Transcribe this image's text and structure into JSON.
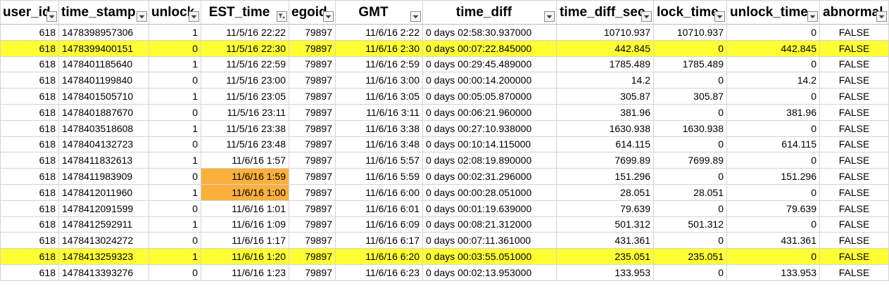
{
  "colors": {
    "row_highlight": "#ffff33",
    "cell_highlight": "#fbb03b",
    "gridline": "#d4d4d4"
  },
  "columns": [
    {
      "label": "user_id",
      "filter_icon": "filter-dropdown-icon",
      "filtered": false
    },
    {
      "label": "time_stamp",
      "filter_icon": "filter-dropdown-icon",
      "filtered": false
    },
    {
      "label": "unlock",
      "filter_icon": "filter-dropdown-icon",
      "filtered": false
    },
    {
      "label": "EST_time",
      "filter_icon": "filter-active-icon",
      "filtered": true
    },
    {
      "label": "egoid",
      "filter_icon": "filter-dropdown-icon",
      "filtered": false
    },
    {
      "label": "GMT",
      "filter_icon": "filter-dropdown-icon",
      "filtered": false
    },
    {
      "label": "time_diff",
      "filter_icon": "filter-dropdown-icon",
      "filtered": false
    },
    {
      "label": "time_diff_sec",
      "filter_icon": "filter-dropdown-icon",
      "filtered": false
    },
    {
      "label": "lock_time",
      "filter_icon": "filter-dropdown-icon",
      "filtered": false
    },
    {
      "label": "unlock_time",
      "filter_icon": "filter-dropdown-icon",
      "filtered": false
    },
    {
      "label": "abnormal",
      "filter_icon": "filter-dropdown-icon",
      "filtered": false
    }
  ],
  "rows": [
    {
      "highlight": false,
      "orange_cols": [],
      "cells": [
        "618",
        "1478398957306",
        "1",
        "11/5/16 22:22",
        "79897",
        "11/6/16 2:22",
        "0 days 02:58:30.937000",
        "10710.937",
        "10710.937",
        "0",
        "FALSE"
      ]
    },
    {
      "highlight": true,
      "orange_cols": [],
      "cells": [
        "618",
        "1478399400151",
        "0",
        "11/5/16 22:30",
        "79897",
        "11/6/16 2:30",
        "0 days 00:07:22.845000",
        "442.845",
        "0",
        "442.845",
        "FALSE"
      ]
    },
    {
      "highlight": false,
      "orange_cols": [],
      "cells": [
        "618",
        "1478401185640",
        "1",
        "11/5/16 22:59",
        "79897",
        "11/6/16 2:59",
        "0 days 00:29:45.489000",
        "1785.489",
        "1785.489",
        "0",
        "FALSE"
      ]
    },
    {
      "highlight": false,
      "orange_cols": [],
      "cells": [
        "618",
        "1478401199840",
        "0",
        "11/5/16 23:00",
        "79897",
        "11/6/16 3:00",
        "0 days 00:00:14.200000",
        "14.2",
        "0",
        "14.2",
        "FALSE"
      ]
    },
    {
      "highlight": false,
      "orange_cols": [],
      "cells": [
        "618",
        "1478401505710",
        "1",
        "11/5/16 23:05",
        "79897",
        "11/6/16 3:05",
        "0 days 00:05:05.870000",
        "305.87",
        "305.87",
        "0",
        "FALSE"
      ]
    },
    {
      "highlight": false,
      "orange_cols": [],
      "cells": [
        "618",
        "1478401887670",
        "0",
        "11/5/16 23:11",
        "79897",
        "11/6/16 3:11",
        "0 days 00:06:21.960000",
        "381.96",
        "0",
        "381.96",
        "FALSE"
      ]
    },
    {
      "highlight": false,
      "orange_cols": [],
      "cells": [
        "618",
        "1478403518608",
        "1",
        "11/5/16 23:38",
        "79897",
        "11/6/16 3:38",
        "0 days 00:27:10.938000",
        "1630.938",
        "1630.938",
        "0",
        "FALSE"
      ]
    },
    {
      "highlight": false,
      "orange_cols": [],
      "cells": [
        "618",
        "1478404132723",
        "0",
        "11/5/16 23:48",
        "79897",
        "11/6/16 3:48",
        "0 days 00:10:14.115000",
        "614.115",
        "0",
        "614.115",
        "FALSE"
      ]
    },
    {
      "highlight": false,
      "orange_cols": [],
      "cells": [
        "618",
        "1478411832613",
        "1",
        "11/6/16 1:57",
        "79897",
        "11/6/16 5:57",
        "0 days 02:08:19.890000",
        "7699.89",
        "7699.89",
        "0",
        "FALSE"
      ]
    },
    {
      "highlight": false,
      "orange_cols": [
        3
      ],
      "cells": [
        "618",
        "1478411983909",
        "0",
        "11/6/16 1:59",
        "79897",
        "11/6/16 5:59",
        "0 days 00:02:31.296000",
        "151.296",
        "0",
        "151.296",
        "FALSE"
      ]
    },
    {
      "highlight": false,
      "orange_cols": [
        3
      ],
      "cells": [
        "618",
        "1478412011960",
        "1",
        "11/6/16 1:00",
        "79897",
        "11/6/16 6:00",
        "0 days 00:00:28.051000",
        "28.051",
        "28.051",
        "0",
        "FALSE"
      ]
    },
    {
      "highlight": false,
      "orange_cols": [],
      "cells": [
        "618",
        "1478412091599",
        "0",
        "11/6/16 1:01",
        "79897",
        "11/6/16 6:01",
        "0 days 00:01:19.639000",
        "79.639",
        "0",
        "79.639",
        "FALSE"
      ]
    },
    {
      "highlight": false,
      "orange_cols": [],
      "cells": [
        "618",
        "1478412592911",
        "1",
        "11/6/16 1:09",
        "79897",
        "11/6/16 6:09",
        "0 days 00:08:21.312000",
        "501.312",
        "501.312",
        "0",
        "FALSE"
      ]
    },
    {
      "highlight": false,
      "orange_cols": [],
      "cells": [
        "618",
        "1478413024272",
        "0",
        "11/6/16 1:17",
        "79897",
        "11/6/16 6:17",
        "0 days 00:07:11.361000",
        "431.361",
        "0",
        "431.361",
        "FALSE"
      ]
    },
    {
      "highlight": true,
      "orange_cols": [],
      "cells": [
        "618",
        "1478413259323",
        "1",
        "11/6/16 1:20",
        "79897",
        "11/6/16 6:20",
        "0 days 00:03:55.051000",
        "235.051",
        "235.051",
        "0",
        "FALSE"
      ]
    },
    {
      "highlight": false,
      "orange_cols": [],
      "cells": [
        "618",
        "1478413393276",
        "0",
        "11/6/16 1:23",
        "79897",
        "11/6/16 6:23",
        "0 days 00:02:13.953000",
        "133.953",
        "0",
        "133.953",
        "FALSE"
      ]
    }
  ]
}
